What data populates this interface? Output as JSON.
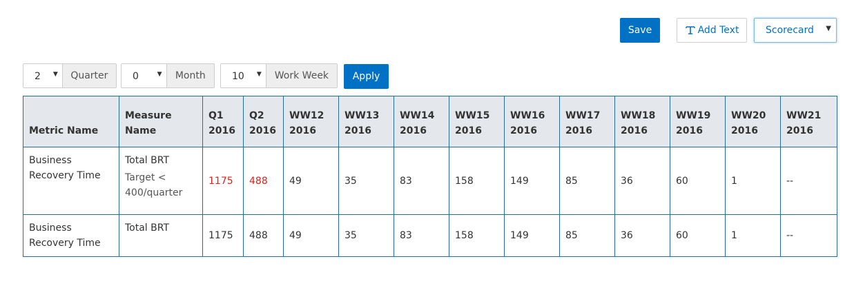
{
  "toolbar": {
    "save_label": "Save",
    "add_text_label": "Add Text",
    "view_select_value": "Scorecard"
  },
  "filters": {
    "quarter": {
      "value": "2",
      "label": "Quarter"
    },
    "month": {
      "value": "0",
      "label": "Month"
    },
    "work_week": {
      "value": "10",
      "label": "Work Week"
    },
    "apply_label": "Apply"
  },
  "table": {
    "headers": [
      {
        "l1": "Metric Name",
        "l2": ""
      },
      {
        "l1": "Measure Name",
        "l2": ""
      },
      {
        "l1": "Q1",
        "l2": "2016"
      },
      {
        "l1": "Q2",
        "l2": "2016"
      },
      {
        "l1": "WW12",
        "l2": "2016"
      },
      {
        "l1": "WW13",
        "l2": "2016"
      },
      {
        "l1": "WW14",
        "l2": "2016"
      },
      {
        "l1": "WW15",
        "l2": "2016"
      },
      {
        "l1": "WW16",
        "l2": "2016"
      },
      {
        "l1": "WW17",
        "l2": "2016"
      },
      {
        "l1": "WW18",
        "l2": "2016"
      },
      {
        "l1": "WW19",
        "l2": "2016"
      },
      {
        "l1": "WW20",
        "l2": "2016"
      },
      {
        "l1": "WW21",
        "l2": "2016"
      }
    ],
    "rows": [
      {
        "metric": "Business Recovery Time",
        "measure": "Total BRT",
        "target": "Target < 400/quarter",
        "values": [
          "1175",
          "488",
          "49",
          "35",
          "83",
          "158",
          "149",
          "85",
          "36",
          "60",
          "1",
          "--"
        ]
      },
      {
        "metric": "Business Recovery Time",
        "measure": "Total BRT",
        "target": "",
        "values": [
          "1175",
          "488",
          "49",
          "35",
          "83",
          "158",
          "149",
          "85",
          "36",
          "60",
          "1",
          "--"
        ]
      }
    ],
    "alert_color": "#e0201b"
  }
}
